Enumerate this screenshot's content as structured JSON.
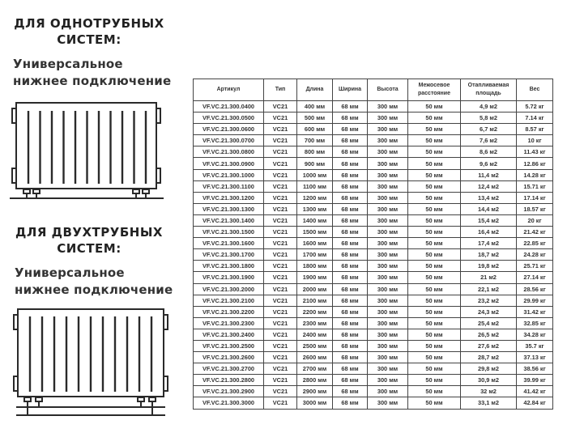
{
  "single_pipe": {
    "heading_line1": "ДЛЯ ОДНОТРУБНЫХ",
    "heading_line2": "СИСТЕМ:",
    "subtitle_line1": "Универсальное",
    "subtitle_line2": "нижнее подключение",
    "diagram_icon": "radiator-single-pipe-icon"
  },
  "double_pipe": {
    "heading_line1": "ДЛЯ ДВУХТРУБНЫХ",
    "heading_line2": "СИСТЕМ:",
    "subtitle_line1": "Универсальное",
    "subtitle_line2": "нижнее подключение",
    "diagram_icon": "radiator-double-pipe-icon"
  },
  "table": {
    "headers": [
      "Артикул",
      "Тип",
      "Длина",
      "Ширина",
      "Высота",
      "Межосевое расстояние",
      "Отапливаемая площадь",
      "Вес"
    ],
    "rows": [
      [
        "VF.VC.21.300.0400",
        "VC21",
        "400 мм",
        "68 мм",
        "300 мм",
        "50 мм",
        "4,9 м2",
        "5.72 кг"
      ],
      [
        "VF.VC.21.300.0500",
        "VC21",
        "500 мм",
        "68 мм",
        "300 мм",
        "50 мм",
        "5,8 м2",
        "7.14 кг"
      ],
      [
        "VF.VC.21.300.0600",
        "VC21",
        "600 мм",
        "68 мм",
        "300 мм",
        "50 мм",
        "6,7 м2",
        "8.57 кг"
      ],
      [
        "VF.VC.21.300.0700",
        "VC21",
        "700 мм",
        "68 мм",
        "300 мм",
        "50 мм",
        "7,6 м2",
        "10 кг"
      ],
      [
        "VF.VC.21.300.0800",
        "VC21",
        "800 мм",
        "68 мм",
        "300 мм",
        "50 мм",
        "8,6 м2",
        "11.43 кг"
      ],
      [
        "VF.VC.21.300.0900",
        "VC21",
        "900 мм",
        "68 мм",
        "300 мм",
        "50 мм",
        "9,6 м2",
        "12.86 кг"
      ],
      [
        "VF.VC.21.300.1000",
        "VC21",
        "1000 мм",
        "68 мм",
        "300 мм",
        "50 мм",
        "11,4 м2",
        "14.28 кг"
      ],
      [
        "VF.VC.21.300.1100",
        "VC21",
        "1100 мм",
        "68 мм",
        "300 мм",
        "50 мм",
        "12,4 м2",
        "15.71 кг"
      ],
      [
        "VF.VC.21.300.1200",
        "VC21",
        "1200 мм",
        "68 мм",
        "300 мм",
        "50 мм",
        "13,4 м2",
        "17.14 кг"
      ],
      [
        "VF.VC.21.300.1300",
        "VC21",
        "1300 мм",
        "68 мм",
        "300 мм",
        "50 мм",
        "14,4 м2",
        "18.57 кг"
      ],
      [
        "VF.VC.21.300.1400",
        "VC21",
        "1400 мм",
        "68 мм",
        "300 мм",
        "50 мм",
        "15,4 м2",
        "20 кг"
      ],
      [
        "VF.VC.21.300.1500",
        "VC21",
        "1500 мм",
        "68 мм",
        "300 мм",
        "50 мм",
        "16,4 м2",
        "21.42 кг"
      ],
      [
        "VF.VC.21.300.1600",
        "VC21",
        "1600 мм",
        "68 мм",
        "300 мм",
        "50 мм",
        "17,4 м2",
        "22.85 кг"
      ],
      [
        "VF.VC.21.300.1700",
        "VC21",
        "1700 мм",
        "68 мм",
        "300 мм",
        "50 мм",
        "18,7 м2",
        "24.28 кг"
      ],
      [
        "VF.VC.21.300.1800",
        "VC21",
        "1800 мм",
        "68 мм",
        "300 мм",
        "50 мм",
        "19,8 м2",
        "25.71 кг"
      ],
      [
        "VF.VC.21.300.1900",
        "VC21",
        "1900 мм",
        "68 мм",
        "300 мм",
        "50 мм",
        "21 м2",
        "27.14 кг"
      ],
      [
        "VF.VC.21.300.2000",
        "VC21",
        "2000 мм",
        "68 мм",
        "300 мм",
        "50 мм",
        "22,1 м2",
        "28.56 кг"
      ],
      [
        "VF.VC.21.300.2100",
        "VC21",
        "2100 мм",
        "68 мм",
        "300 мм",
        "50 мм",
        "23,2 м2",
        "29.99 кг"
      ],
      [
        "VF.VC.21.300.2200",
        "VC21",
        "2200 мм",
        "68 мм",
        "300 мм",
        "50 мм",
        "24,3 м2",
        "31.42 кг"
      ],
      [
        "VF.VC.21.300.2300",
        "VC21",
        "2300 мм",
        "68 мм",
        "300 мм",
        "50 мм",
        "25,4 м2",
        "32.85 кг"
      ],
      [
        "VF.VC.21.300.2400",
        "VC21",
        "2400 мм",
        "68 мм",
        "300 мм",
        "50 мм",
        "26,5 м2",
        "34.28 кг"
      ],
      [
        "VF.VC.21.300.2500",
        "VC21",
        "2500 мм",
        "68 мм",
        "300 мм",
        "50 мм",
        "27,6 м2",
        "35.7 кг"
      ],
      [
        "VF.VC.21.300.2600",
        "VC21",
        "2600 мм",
        "68 мм",
        "300 мм",
        "50 мм",
        "28,7 м2",
        "37.13 кг"
      ],
      [
        "VF.VC.21.300.2700",
        "VC21",
        "2700 мм",
        "68 мм",
        "300 мм",
        "50 мм",
        "29,8 м2",
        "38.56 кг"
      ],
      [
        "VF.VC.21.300.2800",
        "VC21",
        "2800 мм",
        "68 мм",
        "300 мм",
        "50 мм",
        "30,9 м2",
        "39.99 кг"
      ],
      [
        "VF.VC.21.300.2900",
        "VC21",
        "2900 мм",
        "68 мм",
        "300 мм",
        "50 мм",
        "32 м2",
        "41.42 кг"
      ],
      [
        "VF.VC.21.300.3000",
        "VC21",
        "3000 мм",
        "68 мм",
        "300 мм",
        "50 мм",
        "33,1 м2",
        "42.84 кг"
      ]
    ]
  }
}
